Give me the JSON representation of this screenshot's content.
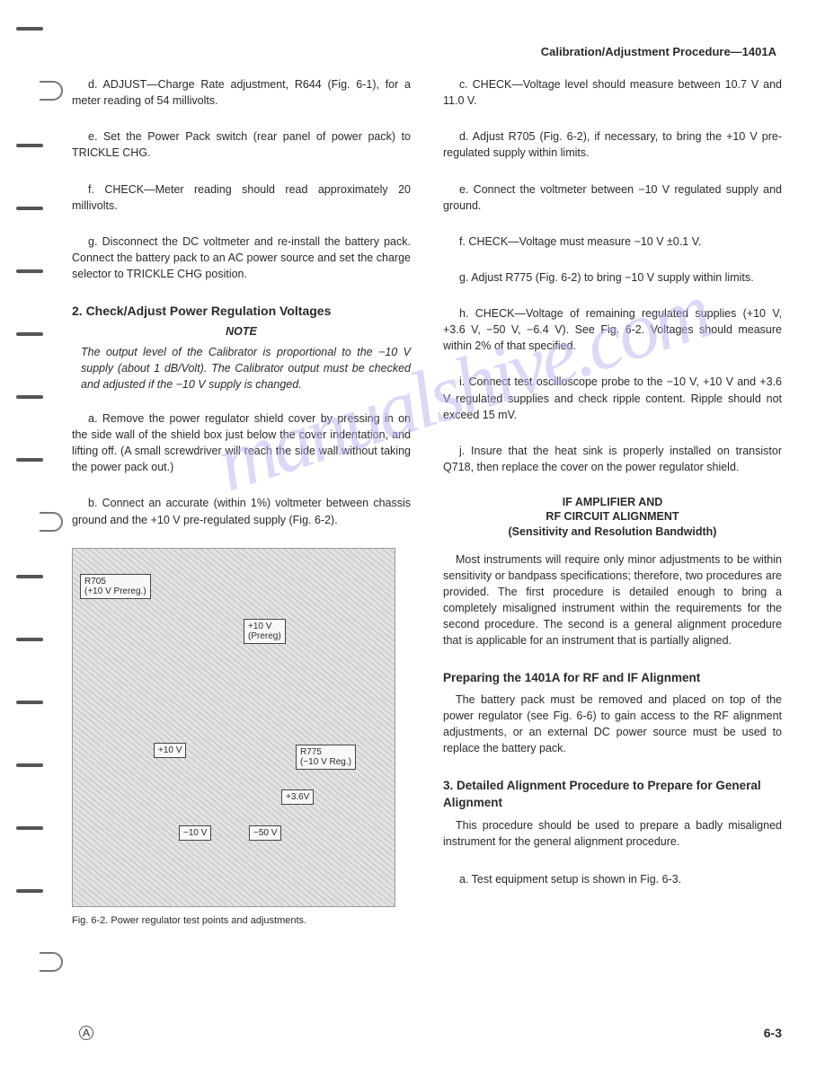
{
  "header": "Calibration/Adjustment Procedure—1401A",
  "left": {
    "p_d": "d. ADJUST—Charge Rate adjustment, R644 (Fig. 6-1), for a meter reading of 54 millivolts.",
    "p_e": "e. Set the Power Pack switch (rear panel of power pack) to TRICKLE CHG.",
    "p_f": "f. CHECK—Meter reading should read approximately 20 millivolts.",
    "p_g": "g. Disconnect the DC voltmeter and re-install the battery pack. Connect the battery pack to an AC power source and set the charge selector to TRICKLE CHG position.",
    "sec2_title": "2. Check/Adjust Power Regulation Voltages",
    "note_label": "NOTE",
    "note_body": "The output level of the Calibrator is proportional to the −10 V supply (about 1 dB/Volt). The Calibrator output must be checked and adjusted if the −10 V supply is changed.",
    "p_a2": "a. Remove the power regulator shield cover by pressing in on the side wall of the shield box just below the cover indentation, and lifting off. (A small screwdriver will reach the side wall without taking the power pack out.)",
    "p_b2": "b. Connect an accurate (within 1%) voltmeter between chassis ground and the +10 V pre-regulated supply (Fig. 6-2).",
    "fig_caption": "Fig. 6-2.  Power regulator test points and adjustments."
  },
  "figure_callouts": {
    "r705": "R705\n(+10 V Prereg.)",
    "p10v_prereg": "+10 V\n(Prereg)",
    "p10v": "+10 V",
    "r775": "R775\n(−10 V Reg.)",
    "p36v": "+3.6V",
    "m10v": "−10 V",
    "m50v": "−50 V"
  },
  "right": {
    "p_c": "c. CHECK—Voltage level should measure between 10.7 V and 11.0 V.",
    "p_d": "d. Adjust R705 (Fig. 6-2), if necessary, to bring the +10 V pre-regulated supply within limits.",
    "p_e": "e. Connect the voltmeter between −10 V regulated supply and ground.",
    "p_f": "f. CHECK—Voltage must measure −10 V ±0.1 V.",
    "p_g": "g. Adjust R775 (Fig. 6-2) to bring −10 V supply within limits.",
    "p_h": "h. CHECK—Voltage of remaining regulated supplies (+10 V, +3.6 V, −50 V, −6.4 V). See Fig. 6-2. Voltages should measure within 2% of that specified.",
    "p_i": "i. Connect test oscilloscope probe to the −10 V, +10 V and +3.6 V regulated supplies and check ripple content. Ripple should not exceed 15 mV.",
    "p_j": "j. Insure that the heat sink is properly installed on transistor Q718, then replace the cover on the power regulator shield.",
    "block_l1": "IF AMPLIFIER AND",
    "block_l2": "RF CIRCUIT ALIGNMENT",
    "block_l3": "(Sensitivity and Resolution Bandwidth)",
    "intro": "Most instruments will require only minor adjustments to be within sensitivity or bandpass specifications; therefore, two procedures are provided. The first procedure is detailed enough to bring a completely misaligned instrument within the requirements for the second procedure. The second is a general alignment procedure that is applicable for an instrument that is partially aligned.",
    "prep_title": "Preparing the 1401A for RF and IF Alignment",
    "prep_body": "The battery pack must be removed and placed on top of the power regulator (see Fig. 6-6) to gain access to the RF alignment adjustments, or an external DC power source must be used to replace the battery pack.",
    "sec3_title": "3. Detailed Alignment Procedure to Prepare for General Alignment",
    "sec3_body": "This procedure should be used to prepare a badly misaligned instrument for the general alignment procedure.",
    "p_a3": "a. Test equipment setup is shown in Fig. 6-3."
  },
  "footer": {
    "page_num": "6-3",
    "rev_mark": "A"
  },
  "watermark": "manualshive.com",
  "colors": {
    "text": "#2a2a2a",
    "watermark": "#b9b3f2",
    "fig_bg": "#d7d7d7"
  }
}
